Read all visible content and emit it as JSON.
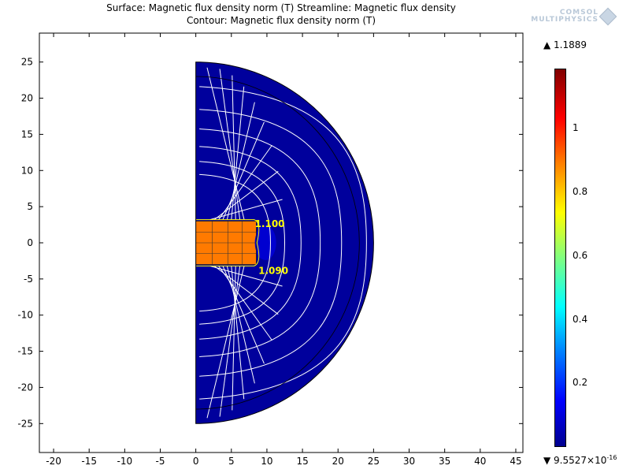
{
  "header": {
    "title_line1": "Surface: Magnetic flux density norm (T)  Streamline: Magnetic flux density",
    "title_line2": "Contour: Magnetic flux density norm (T)",
    "logo_line1": "COMSOL",
    "logo_line2": "MULTIPHYSICS"
  },
  "colorbar": {
    "max_label": "▲ 1.1889",
    "min_label_base": "▼ 9.5527×10",
    "min_label_exp": "-16",
    "max": 1.1889,
    "min": 0,
    "ticks": [
      {
        "value": 1.0,
        "label": "1"
      },
      {
        "value": 0.8,
        "label": "0.8"
      },
      {
        "value": 0.6,
        "label": "0.6"
      },
      {
        "value": 0.4,
        "label": "0.4"
      },
      {
        "value": 0.2,
        "label": "0.2"
      }
    ],
    "colormap": "rainbow"
  },
  "chart_data": {
    "type": "heatmap",
    "title": "Surface: Magnetic flux density norm (T)  Streamline: Magnetic flux density / Contour: Magnetic flux density norm (T)",
    "xlim": [
      -22,
      46
    ],
    "ylim": [
      -29,
      29
    ],
    "x_ticks": [
      -20,
      -15,
      -10,
      -5,
      0,
      5,
      10,
      15,
      20,
      25,
      30,
      35,
      40,
      45
    ],
    "y_ticks": [
      -25,
      -20,
      -15,
      -10,
      -5,
      0,
      5,
      10,
      15,
      20,
      25
    ],
    "grid": false,
    "domain": {
      "shape": "half-disk",
      "outer_radius": 25,
      "inner_boundary_radius": 23
    },
    "magnet": {
      "r_min": 0,
      "r_max": 8.5,
      "z_min": -3,
      "z_max": 3,
      "b_norm": 0.85
    },
    "contour_labels": [
      {
        "x": 8.3,
        "y": 2.2,
        "label": "1.100"
      },
      {
        "x": 8.8,
        "y": -4.3,
        "label": "1.090"
      }
    ],
    "colors": {
      "low": "#00008f",
      "mid": "#ffff00",
      "high": "#800000",
      "streamline": "#ffffff",
      "contour": "#ffff00"
    }
  }
}
